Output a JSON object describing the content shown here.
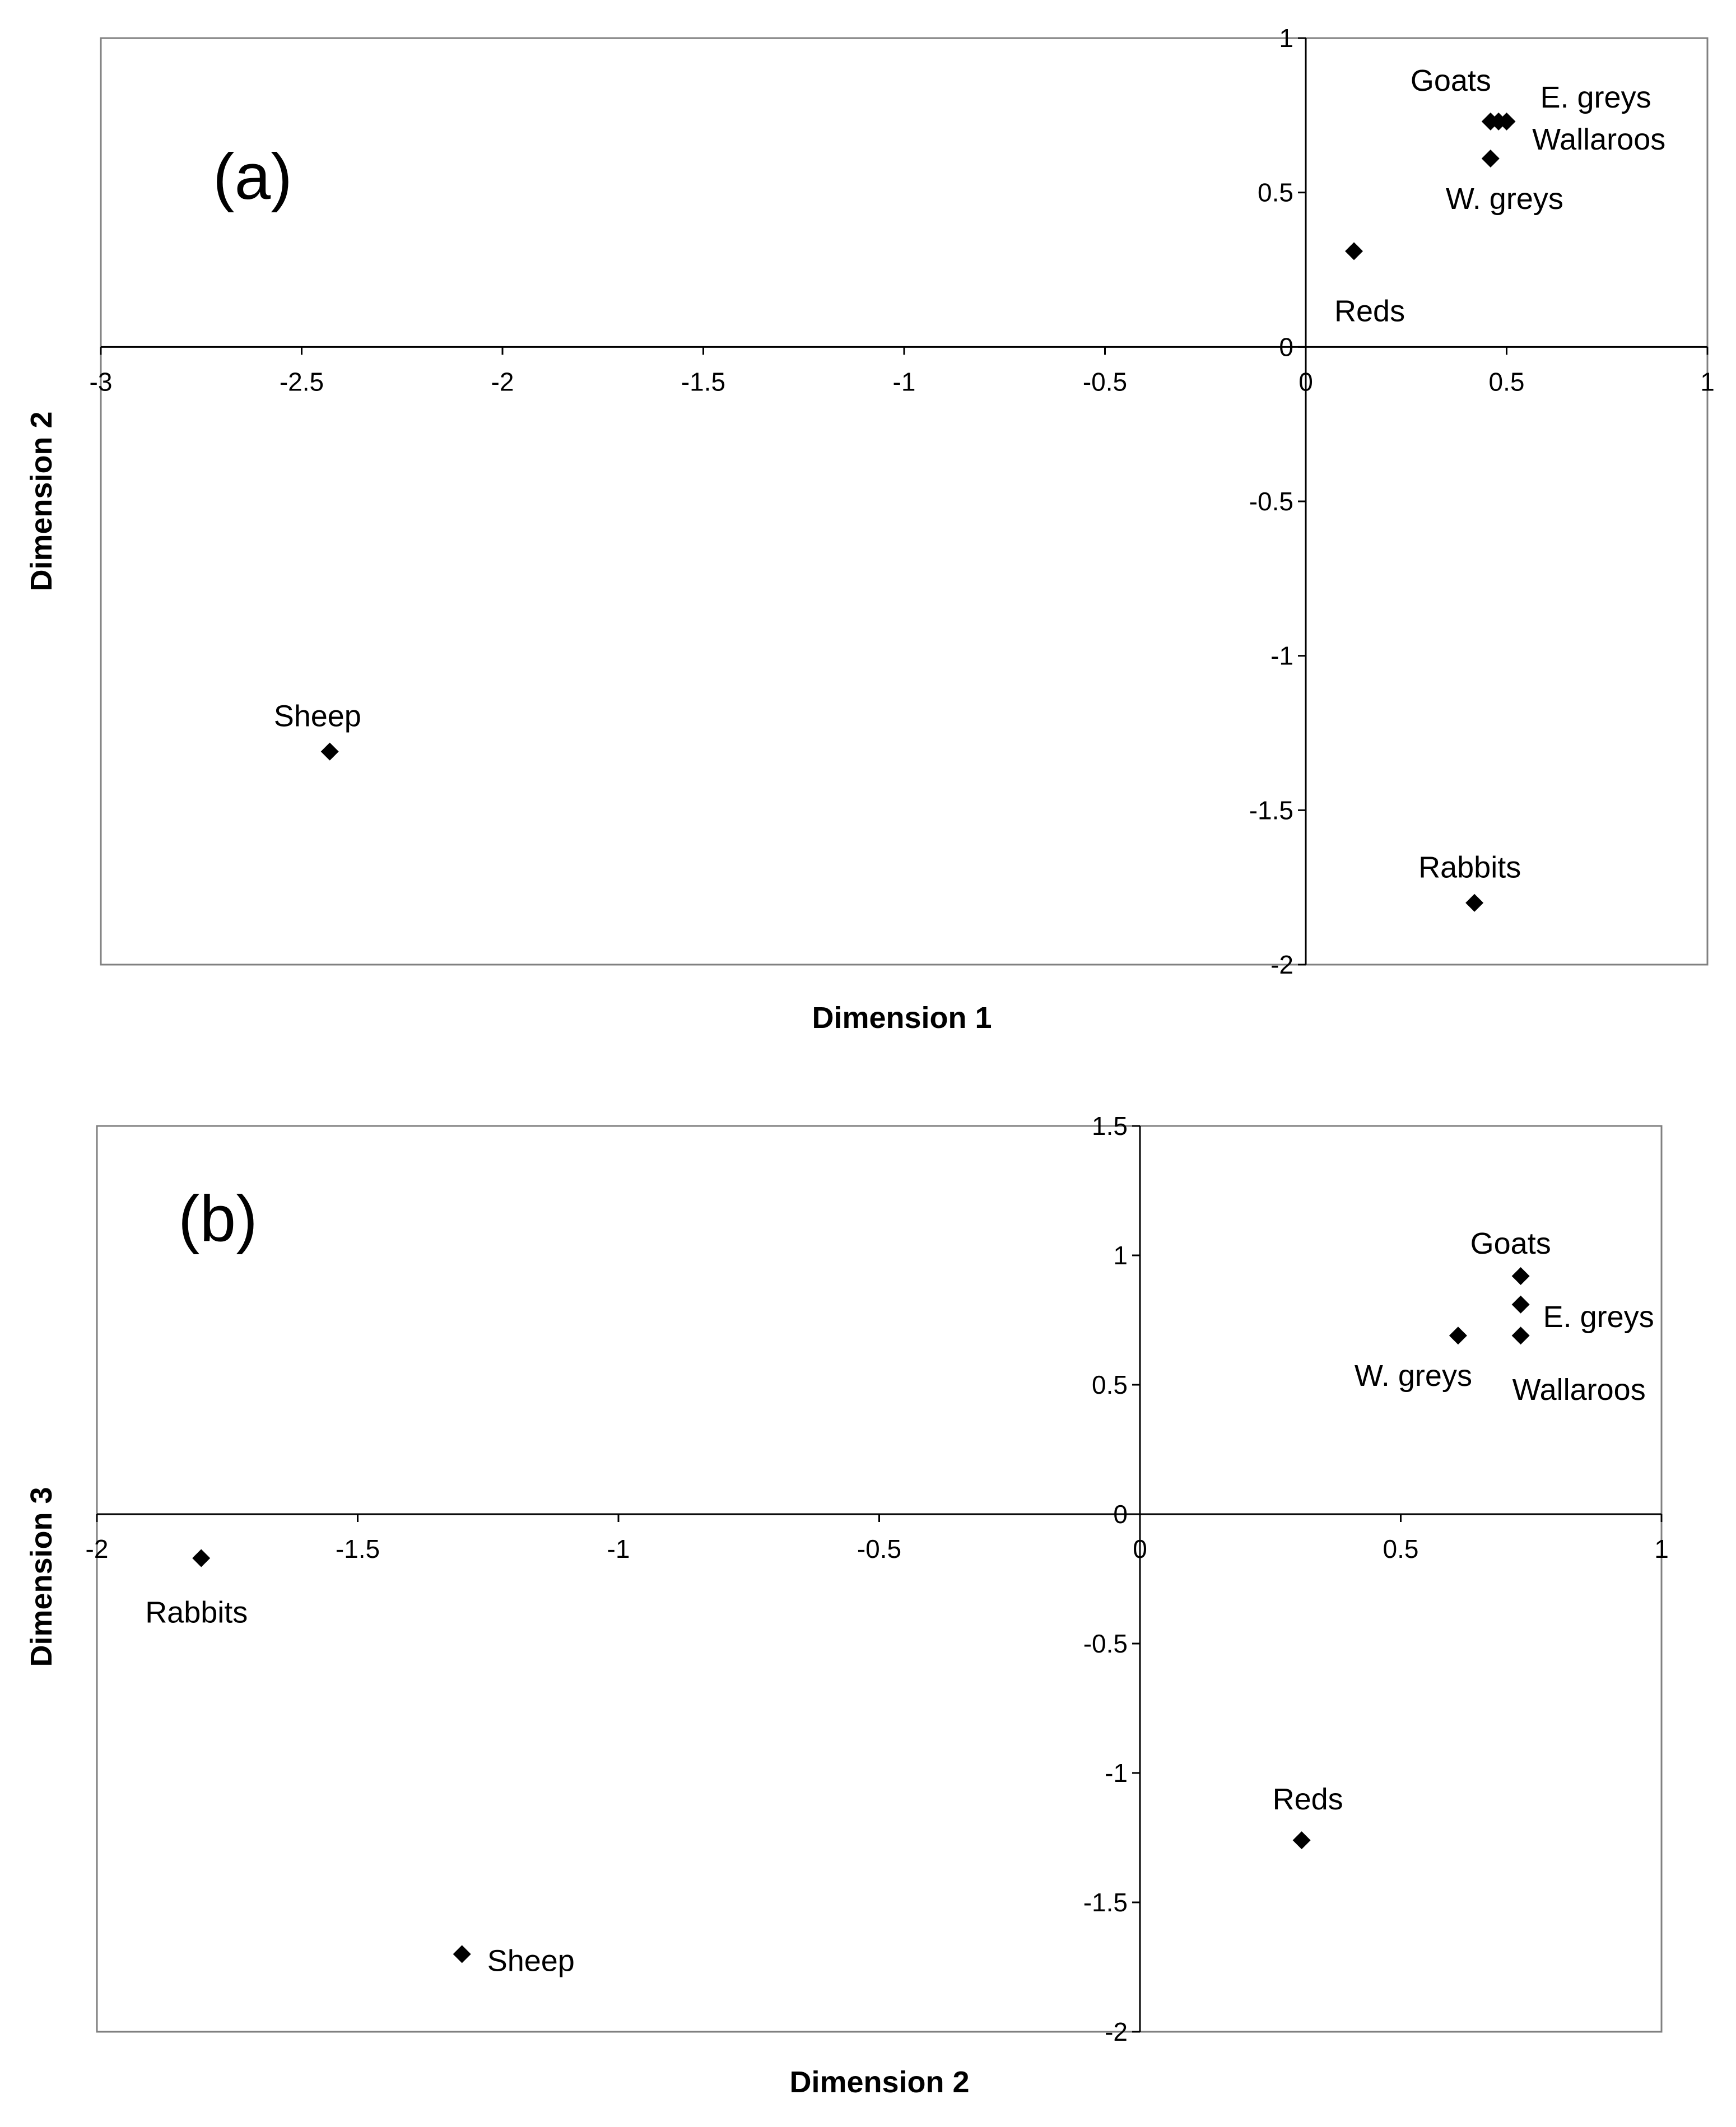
{
  "chart_data": [
    {
      "type": "scatter",
      "panel_label": "(a)",
      "xlabel": "Dimension  1",
      "ylabel": "Dimension  2",
      "xlim": [
        -3,
        1
      ],
      "ylim": [
        -2,
        1
      ],
      "xticks": [
        -3,
        -2.5,
        -2,
        -1.5,
        -1,
        -0.5,
        0,
        0.5,
        1
      ],
      "yticks": [
        -2,
        -1.5,
        -1,
        -0.5,
        0,
        0.5,
        1
      ],
      "grid": false,
      "marker_color": "#000000",
      "points": [
        {
          "label": "Goats",
          "x": 0.46,
          "y": 0.73
        },
        {
          "label": "E. greys",
          "x": 0.5,
          "y": 0.73
        },
        {
          "label": "Wallaroos",
          "x": 0.48,
          "y": 0.73
        },
        {
          "label": "W. greys",
          "x": 0.46,
          "y": 0.61
        },
        {
          "label": "Reds",
          "x": 0.12,
          "y": 0.31
        },
        {
          "label": "Sheep",
          "x": -2.43,
          "y": -1.31
        },
        {
          "label": "Rabbits",
          "x": 0.42,
          "y": -1.8
        }
      ]
    },
    {
      "type": "scatter",
      "panel_label": "(b)",
      "xlabel": "Dimension  2",
      "ylabel": "Dimension  3",
      "xlim": [
        -2,
        1
      ],
      "ylim": [
        -2,
        1.5
      ],
      "xticks": [
        -2,
        -1.5,
        -1,
        -0.5,
        0,
        0.5,
        1
      ],
      "yticks": [
        -2,
        -1.5,
        -1,
        -0.5,
        0,
        0.5,
        1,
        1.5
      ],
      "grid": false,
      "marker_color": "#000000",
      "points": [
        {
          "label": "Goats",
          "x": 0.73,
          "y": 0.92
        },
        {
          "label": "E. greys",
          "x": 0.73,
          "y": 0.81
        },
        {
          "label": "Wallaroos",
          "x": 0.73,
          "y": 0.69
        },
        {
          "label": "W. greys",
          "x": 0.61,
          "y": 0.69
        },
        {
          "label": "Reds",
          "x": 0.31,
          "y": -1.26
        },
        {
          "label": "Sheep",
          "x": -1.3,
          "y": -1.7
        },
        {
          "label": "Rabbits",
          "x": -1.8,
          "y": -0.17
        }
      ]
    }
  ]
}
